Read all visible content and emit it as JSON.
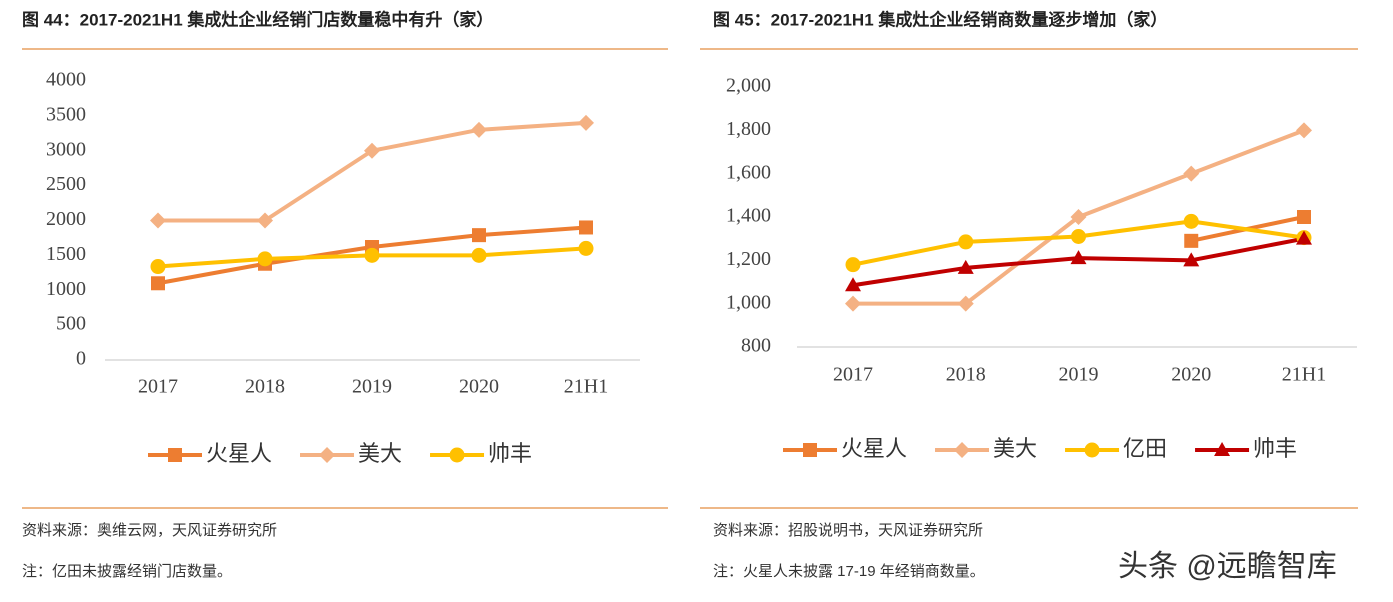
{
  "chart_data": [
    {
      "type": "line",
      "title": "图 44：2017-2021H1 集成灶企业经销门店数量稳中有升（家）",
      "categories": [
        "2017",
        "2018",
        "2019",
        "2020",
        "21H1"
      ],
      "series": [
        {
          "name": "火星人",
          "color": "#ED7D31",
          "marker": "square",
          "values": [
            1100,
            1380,
            1620,
            1790,
            1900
          ]
        },
        {
          "name": "美大",
          "color": "#F4B183",
          "marker": "diamond",
          "values": [
            2000,
            2000,
            3000,
            3300,
            3400
          ]
        },
        {
          "name": "帅丰",
          "color": "#FFC000",
          "marker": "circle",
          "values": [
            1340,
            1450,
            1500,
            1500,
            1600
          ]
        }
      ],
      "ylim": [
        0,
        4000
      ],
      "yticks": [
        0,
        500,
        1000,
        1500,
        2000,
        2500,
        3000,
        3500,
        4000
      ],
      "grid": false,
      "legend": "bottom",
      "source": "资料来源：奥维云网，天风证券研究所",
      "note": "注：亿田未披露经销门店数量。"
    },
    {
      "type": "line",
      "title": "图 45：2017-2021H1 集成灶企业经销商数量逐步增加（家）",
      "categories": [
        "2017",
        "2018",
        "2019",
        "2020",
        "21H1"
      ],
      "series": [
        {
          "name": "火星人",
          "color": "#ED7D31",
          "marker": "square",
          "values": [
            null,
            null,
            null,
            1290,
            1400
          ]
        },
        {
          "name": "美大",
          "color": "#F4B183",
          "marker": "diamond",
          "values": [
            1000,
            1000,
            1400,
            1600,
            1800
          ]
        },
        {
          "name": "亿田",
          "color": "#FFC000",
          "marker": "circle",
          "values": [
            1180,
            1285,
            1310,
            1380,
            1305
          ]
        },
        {
          "name": "帅丰",
          "color": "#C00000",
          "marker": "triangle",
          "values": [
            1085,
            1165,
            1210,
            1200,
            1300
          ]
        }
      ],
      "ylim": [
        800,
        2000
      ],
      "yticks": [
        800,
        {
          "value": 1000,
          "label": "1,000"
        },
        {
          "value": 1200,
          "label": "1,200"
        },
        {
          "value": 1400,
          "label": "1,400"
        },
        {
          "value": 1600,
          "label": "1,600"
        },
        {
          "value": 1800,
          "label": "1,800"
        },
        {
          "value": 2000,
          "label": "2,000"
        }
      ],
      "grid": false,
      "legend": "bottom",
      "source": "资料来源：招股说明书，天风证券研究所",
      "note": "注：火星人未披露 17-19 年经销商数量。"
    }
  ],
  "watermark": "头条 @远瞻智库"
}
